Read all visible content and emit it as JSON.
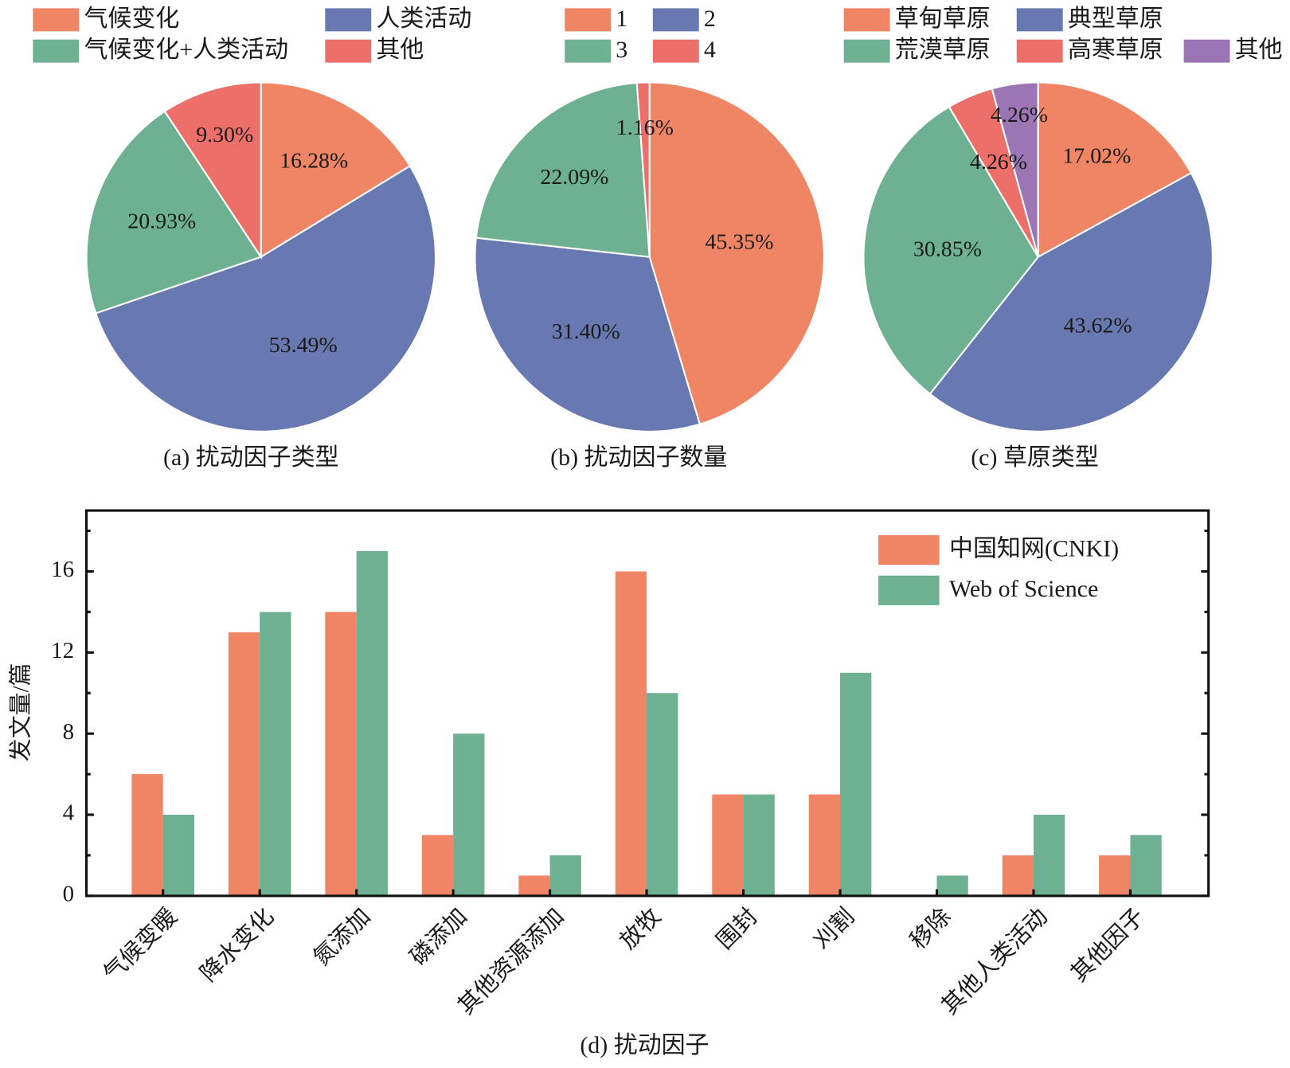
{
  "colors": {
    "orange": "#EF8565",
    "blue": "#6878B0",
    "green": "#6EB192",
    "red": "#EC7069",
    "purple": "#9C76B4"
  },
  "chart_data": [
    {
      "type": "pie",
      "title": "(a) 扰动因子类型",
      "labels": [
        "气候变化",
        "人类活动",
        "气候变化+人类活动",
        "其他"
      ],
      "values": [
        16.28,
        53.49,
        20.93,
        9.3
      ],
      "value_labels": [
        "16.28%",
        "53.49%",
        "20.93%",
        "9.30%"
      ],
      "colors": [
        "#EF8565",
        "#6878B0",
        "#6EB192",
        "#EC7069"
      ],
      "legend_placement": "top"
    },
    {
      "type": "pie",
      "title": "(b) 扰动因子数量",
      "labels": [
        "1",
        "2",
        "3",
        "4"
      ],
      "values": [
        45.35,
        31.4,
        22.09,
        1.16
      ],
      "value_labels": [
        "45.35%",
        "31.40%",
        "22.09%",
        "1.16%"
      ],
      "colors": [
        "#EF8565",
        "#6878B0",
        "#6EB192",
        "#EC7069"
      ],
      "legend_placement": "top"
    },
    {
      "type": "pie",
      "title": "(c) 草原类型",
      "labels": [
        "草甸草原",
        "典型草原",
        "荒漠草原",
        "高寒草原",
        "其他"
      ],
      "values": [
        17.02,
        43.62,
        30.85,
        4.26,
        4.26
      ],
      "value_labels": [
        "17.02%",
        "43.62%",
        "30.85%",
        "4.26%",
        "4.26%"
      ],
      "colors": [
        "#EF8565",
        "#6878B0",
        "#6EB192",
        "#EC7069",
        "#9C76B4"
      ],
      "legend_placement": "top"
    },
    {
      "type": "bar",
      "title": "(d) 扰动因子",
      "xlabel": "(d) 扰动因子",
      "ylabel": "发文量/篇",
      "ylim": [
        0,
        19
      ],
      "yticks": [
        0,
        4,
        8,
        12,
        16
      ],
      "grid": false,
      "legend_placement": "top-right",
      "categories": [
        "气候变暖",
        "降水变化",
        "氮添加",
        "磷添加",
        "其他资源添加",
        "放牧",
        "围封",
        "刈割",
        "移除",
        "其他人类活动",
        "其他因子"
      ],
      "series": [
        {
          "name": "中国知网(CNKI)",
          "color": "#EF8565",
          "values": [
            6,
            13,
            14,
            3,
            1,
            16,
            5,
            5,
            0,
            2,
            2
          ]
        },
        {
          "name": "Web of Science",
          "color": "#6EB192",
          "values": [
            4,
            14,
            17,
            8,
            2,
            10,
            5,
            11,
            1,
            4,
            3
          ]
        }
      ]
    }
  ]
}
